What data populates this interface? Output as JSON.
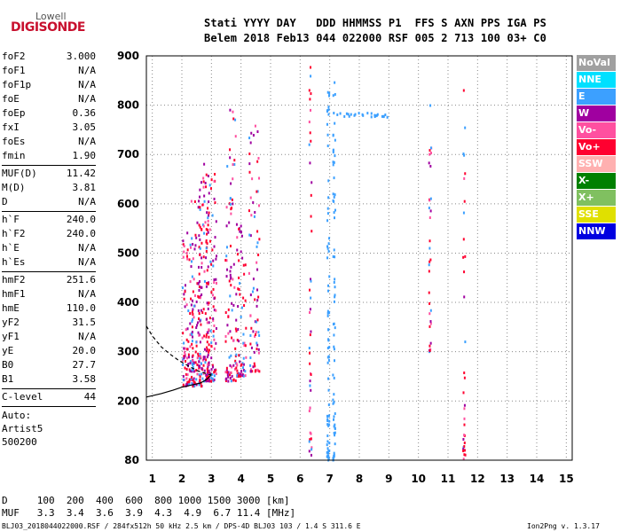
{
  "logo": {
    "line1": "Lowell",
    "line2": "DIGISONDE"
  },
  "header": {
    "row1": "Stati YYYY DAY   DDD HHMMSS P1  FFS S AXN PPS IGA PS",
    "row2": "Belem 2018 Feb13 044 022000 RSF 005 2 713 100 03+ C0"
  },
  "params_group1": [
    {
      "name": "foF2",
      "value": "3.000"
    },
    {
      "name": "foF1",
      "value": "N/A"
    },
    {
      "name": "foF1p",
      "value": "N/A"
    },
    {
      "name": "foE",
      "value": "N/A"
    },
    {
      "name": "foEp",
      "value": "0.36"
    },
    {
      "name": "fxI",
      "value": "3.05"
    },
    {
      "name": "foEs",
      "value": "N/A"
    },
    {
      "name": "fmin",
      "value": "1.90"
    }
  ],
  "params_group2": [
    {
      "name": "MUF(D)",
      "value": "11.42"
    },
    {
      "name": "M(D)",
      "value": "3.81"
    },
    {
      "name": "D",
      "value": "N/A"
    }
  ],
  "params_group3": [
    {
      "name": "h`F",
      "value": "240.0"
    },
    {
      "name": "h`F2",
      "value": "240.0"
    },
    {
      "name": "h`E",
      "value": "N/A"
    },
    {
      "name": "h`Es",
      "value": "N/A"
    }
  ],
  "params_group4": [
    {
      "name": "hmF2",
      "value": "251.6"
    },
    {
      "name": "hmF1",
      "value": "N/A"
    },
    {
      "name": "hmE",
      "value": "110.0"
    },
    {
      "name": "yF2",
      "value": "31.5"
    },
    {
      "name": "yF1",
      "value": "N/A"
    },
    {
      "name": "yE",
      "value": "20.0"
    },
    {
      "name": "B0",
      "value": "27.7"
    },
    {
      "name": "B1",
      "value": "3.58"
    }
  ],
  "clevel": {
    "name": "C-level",
    "value": "44"
  },
  "auto": {
    "line1": "Auto:",
    "line2": "Artist5",
    "line3": "500200"
  },
  "legend": [
    {
      "label": "NoVal",
      "color": "#a0a0a0"
    },
    {
      "label": "NNE",
      "color": "#00e0ff"
    },
    {
      "label": "E",
      "color": "#3ca0ff"
    },
    {
      "label": "W",
      "color": "#a000a0"
    },
    {
      "label": "Vo-",
      "color": "#ff50a0"
    },
    {
      "label": "Vo+",
      "color": "#ff0030"
    },
    {
      "label": "SSW",
      "color": "#ffb0b0"
    },
    {
      "label": "X-",
      "color": "#008000"
    },
    {
      "label": "X+",
      "color": "#80c060"
    },
    {
      "label": "SSE",
      "color": "#e0e000"
    },
    {
      "label": "NNW",
      "color": "#0000e0"
    }
  ],
  "bottom": {
    "d_row": "D     100  200  400  600  800 1000 1500 3000 [km]",
    "muf_row": "MUF   3.3  3.4  3.6  3.9  4.3  4.9  6.7 11.4 [MHz]",
    "footer_left": "BLJ03_2018044022000.RSF / 284fx512h 50 kHz 2.5 km / DPS-4D BLJ03 103 / 1.4 S 311.6 E",
    "footer_right": "Ion2Png v. 1.3.17"
  },
  "chart_data": {
    "type": "scatter",
    "xlim": [
      0.8,
      15.2
    ],
    "ylim": [
      80,
      900
    ],
    "x_ticks": [
      "1",
      "2",
      "3",
      "4",
      "5",
      "6",
      "7",
      "8",
      "9",
      "10",
      "11",
      "12",
      "13",
      "14",
      "15"
    ],
    "y_ticks": [
      "80",
      "200",
      "300",
      "400",
      "500",
      "600",
      "700",
      "800",
      "900"
    ],
    "y_tick_values": [
      80,
      200,
      300,
      400,
      500,
      600,
      700,
      800,
      900
    ],
    "x_tick_values": [
      1,
      2,
      3,
      4,
      5,
      6,
      7,
      8,
      9,
      10,
      11,
      12,
      13,
      14,
      15
    ],
    "grid": true,
    "profile_solid": {
      "x": [
        0.8,
        1.3,
        1.7,
        2.0,
        2.3,
        2.6,
        2.8,
        2.95,
        3.0
      ],
      "y": [
        208,
        215,
        222,
        228,
        232,
        236,
        242,
        250,
        256
      ]
    },
    "profile_dashed": {
      "x": [
        0.8,
        1.0,
        1.3,
        1.6,
        1.9,
        2.2,
        2.5,
        2.8,
        3.0
      ],
      "y": [
        352,
        332,
        310,
        295,
        282,
        272,
        262,
        256,
        252
      ]
    },
    "echo_columns": [
      {
        "x": 2.2,
        "y_from": 230,
        "y_to": 560,
        "density": 0.9
      },
      {
        "x": 2.5,
        "y_from": 230,
        "y_to": 620,
        "density": 0.9
      },
      {
        "x": 2.75,
        "y_from": 240,
        "y_to": 690,
        "density": 1.0
      },
      {
        "x": 3.0,
        "y_from": 240,
        "y_to": 670,
        "density": 1.0
      },
      {
        "x": 3.65,
        "y_from": 240,
        "y_to": 800,
        "density": 0.8
      },
      {
        "x": 4.0,
        "y_from": 250,
        "y_to": 580,
        "density": 0.7
      },
      {
        "x": 4.45,
        "y_from": 260,
        "y_to": 760,
        "density": 0.7
      },
      {
        "x": 6.35,
        "y_from": 80,
        "y_to": 880,
        "density": 0.4
      },
      {
        "x": 6.95,
        "y_from": 80,
        "y_to": 860,
        "density": 0.6
      },
      {
        "x": 7.15,
        "y_from": 80,
        "y_to": 860,
        "density": 0.6
      },
      {
        "x": 10.4,
        "y_from": 300,
        "y_to": 800,
        "density": 0.3
      },
      {
        "x": 11.55,
        "y_from": 80,
        "y_to": 880,
        "density": 0.3
      }
    ]
  }
}
